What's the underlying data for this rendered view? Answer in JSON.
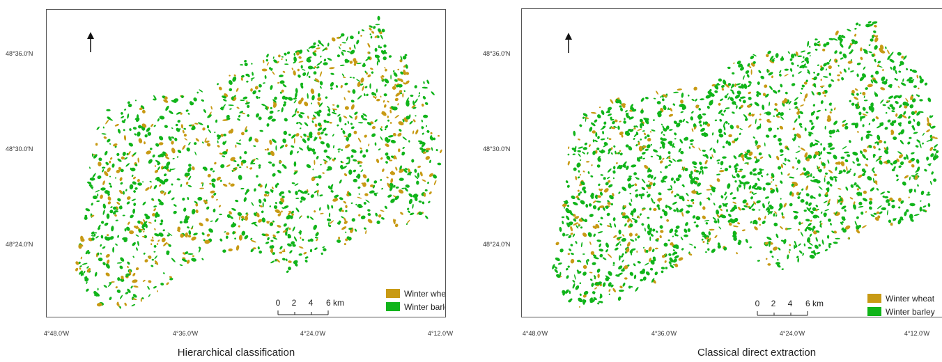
{
  "colors": {
    "winter_wheat": "#c89a14",
    "winter_barley": "#10b41a",
    "frame": "#555555"
  },
  "latitude_labels": [
    "48°36.0′N",
    "48°30.0′N",
    "48°24.0′N"
  ],
  "longitude_labels": [
    "4°48.0′W",
    "4°36.0′W",
    "4°24.0′W",
    "4°12.0′W"
  ],
  "scale": {
    "ticks": [
      "0",
      "2",
      "4",
      "6 km"
    ]
  },
  "legend": [
    {
      "label": "Winter wheat",
      "color": "#c89a14"
    },
    {
      "label": "Winter barley",
      "color": "#10b41a"
    }
  ],
  "panels": [
    {
      "caption": "Hierarchical classification"
    },
    {
      "caption": "Classical direct extraction"
    }
  ],
  "north_arrow_icon": "north-arrow-icon"
}
